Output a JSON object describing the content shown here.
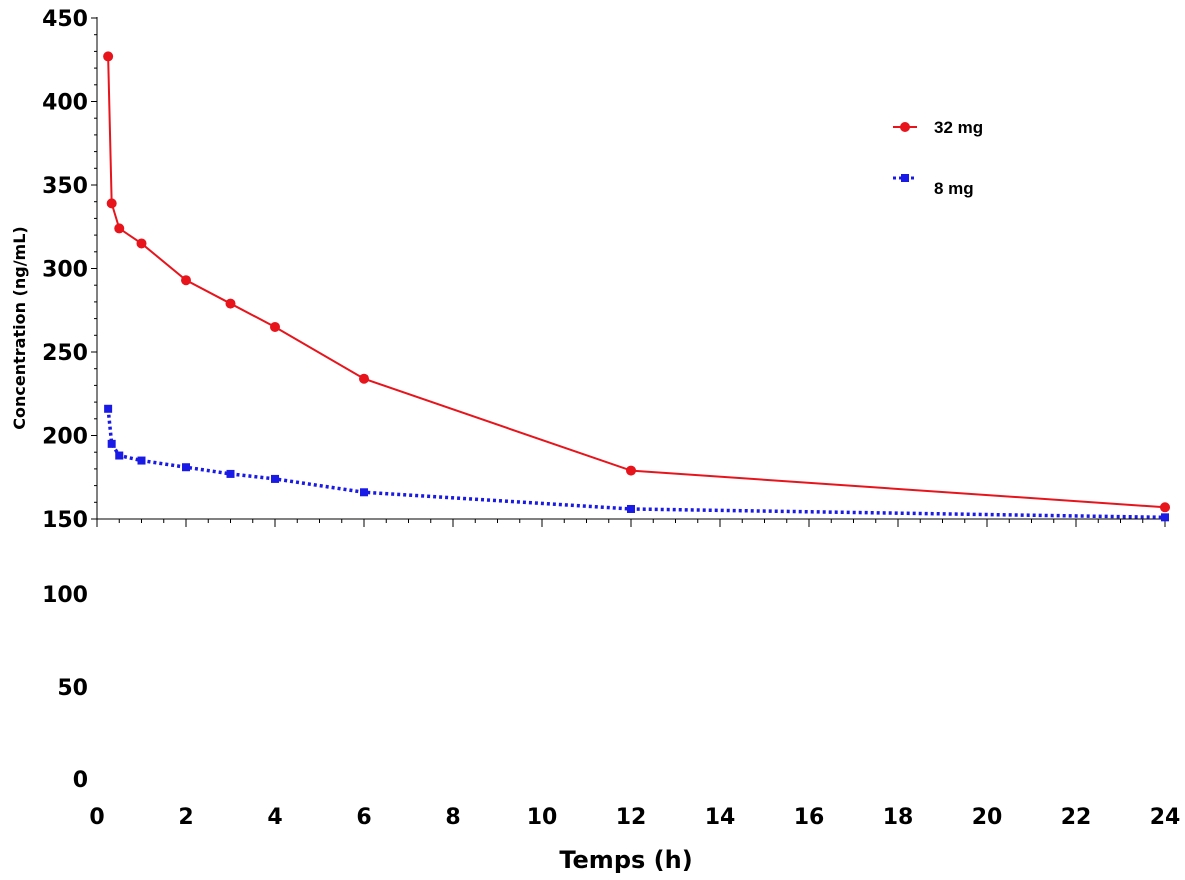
{
  "chart_data": {
    "type": "line",
    "title": "",
    "xlabel": "Temps (h)",
    "ylabel": "Concentration (ng/mL)",
    "xlim": [
      0,
      24
    ],
    "ylim_upper_axis": [
      150,
      450
    ],
    "x_ticks": [
      "0",
      "2",
      "4",
      "6",
      "8",
      "10",
      "12",
      "14",
      "16",
      "18",
      "20",
      "22",
      "24"
    ],
    "y_ticks_upper": [
      "150",
      "200",
      "250",
      "300",
      "350",
      "400",
      "450"
    ],
    "y_ticks_lower": [
      "0",
      "50",
      "100"
    ],
    "grid": false,
    "legend_position": "top-right",
    "series": [
      {
        "name": "32 mg",
        "color": "#e8141c",
        "line_style": "solid",
        "marker": "circle",
        "x": [
          0.25,
          0.33,
          0.5,
          1,
          2,
          3,
          4,
          6,
          12,
          24
        ],
        "y": [
          427,
          339,
          324,
          315,
          293,
          279,
          265,
          234,
          179,
          157
        ]
      },
      {
        "name": "8 mg",
        "color": "#1a1ae6",
        "line_style": "dotted",
        "marker": "square",
        "x": [
          0.25,
          0.33,
          0.5,
          1,
          2,
          3,
          4,
          6,
          12,
          24
        ],
        "y": [
          216,
          195,
          188,
          185,
          181,
          177,
          174,
          166,
          156,
          151
        ]
      }
    ]
  }
}
